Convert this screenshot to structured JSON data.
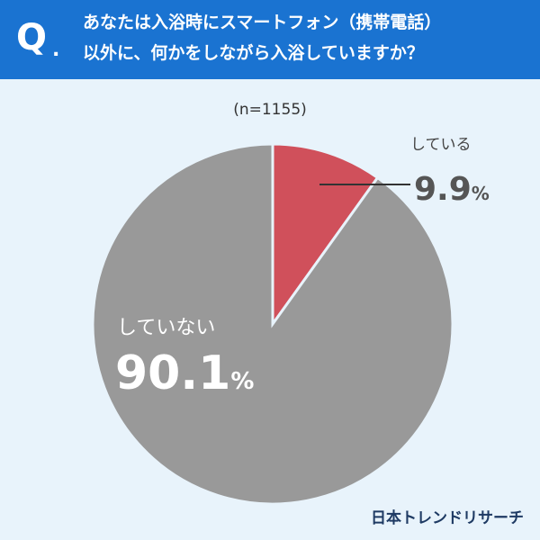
{
  "header": {
    "q_mark": "Q",
    "q_dot": ".",
    "question_line1": "あなたは入浴時にスマートフォン（携帯電話）",
    "question_line2": "以外に、何かをしながら入浴していますか？"
  },
  "colors": {
    "header_bg": "#1a73d1",
    "background": "#e8f3fb",
    "yes": "#d0505b",
    "no": "#999999"
  },
  "chart_data": {
    "type": "pie",
    "sample_size": "(n=1155)",
    "slices": [
      {
        "label": "している",
        "value": 9.9,
        "display": "9.9",
        "unit": "%",
        "color": "#d0505b"
      },
      {
        "label": "していない",
        "value": 90.1,
        "display": "90.1",
        "unit": "%",
        "color": "#999999"
      }
    ],
    "start_angle": "12 o'clock, clockwise"
  },
  "brand": "日本トレンドリサーチ"
}
